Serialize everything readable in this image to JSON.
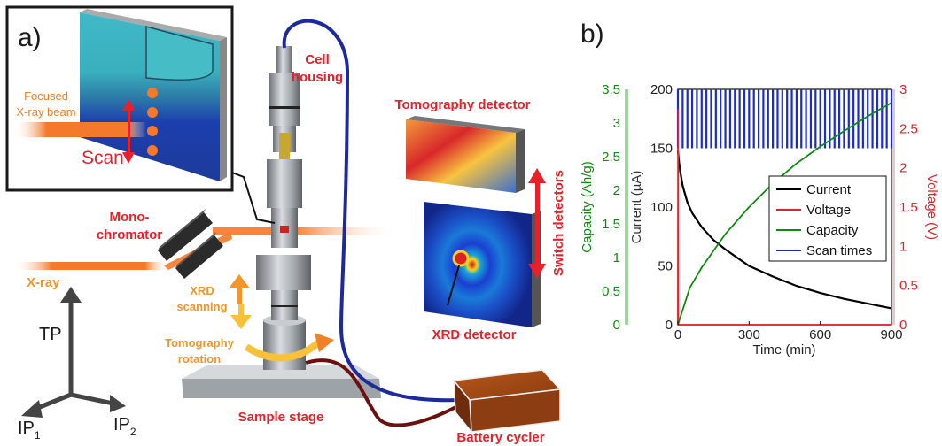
{
  "panel_a": {
    "panel_label": "a)",
    "inset": {
      "beam_label_line1": "Focused",
      "beam_label_line2": "X-ray beam",
      "scan_label": "Scan"
    },
    "labels": {
      "cell_housing_line1": "Cell",
      "cell_housing_line2": "housing",
      "tomography_detector": "Tomography detector",
      "switch_detectors": "Switch detectors",
      "monochromator_line1": "Mono-",
      "monochromator_line2": "chromator",
      "xray": "X-ray",
      "xrd_scanning_line1": "XRD",
      "xrd_scanning_line2": "scanning",
      "tomography_rotation_line1": "Tomography",
      "tomography_rotation_line2": "rotation",
      "xrd_detector": "XRD detector",
      "sample_stage": "Sample stage",
      "battery_cycler": "Battery cycler"
    },
    "axes_glyph": {
      "tp": "TP",
      "ip": "IP",
      "sub1": "1",
      "sub2": "2"
    },
    "colors": {
      "red_label": "#e8202a",
      "orange_label": "#f0962a",
      "beam": "#f5792a",
      "cable_blue": "#1c2a9c",
      "cable_red": "#6b0f0f"
    }
  },
  "panel_b": {
    "panel_label": "b)",
    "chart_data": {
      "type": "line",
      "xlabel": "Time (min)",
      "ylabel_left": "Current  (µA)",
      "ylabel_capacity": "Capacity (Ah/g)",
      "ylabel_right": "Voltage (V)",
      "xlim": [
        0,
        900
      ],
      "xticks": [
        0,
        300,
        600,
        900
      ],
      "ylim_current": [
        0,
        200
      ],
      "yticks_current": [
        0,
        50,
        100,
        150,
        200
      ],
      "ylim_capacity": [
        0,
        3.5
      ],
      "yticks_capacity": [
        "0",
        "0.5",
        "1",
        "1.5",
        "2",
        "2.5",
        "3",
        "3.5"
      ],
      "ylim_voltage": [
        0,
        3
      ],
      "yticks_voltage": [
        "0",
        "0.5",
        "1",
        "1.5",
        "2",
        "2.5",
        "3"
      ],
      "legend_position": "center-right",
      "series": [
        {
          "name": "Current",
          "color": "#000000",
          "axis": "current",
          "x": [
            0,
            5,
            10,
            20,
            40,
            60,
            100,
            150,
            200,
            250,
            300,
            400,
            500,
            600,
            700,
            800,
            900
          ],
          "y": [
            148,
            138,
            130,
            118,
            104,
            95,
            83,
            72,
            64,
            57,
            50,
            41,
            33,
            27,
            22,
            18,
            14
          ]
        },
        {
          "name": "Voltage",
          "color": "#e8202a",
          "axis": "voltage",
          "x": [
            0,
            1,
            2,
            5,
            900
          ],
          "y": [
            0,
            2.75,
            0,
            0,
            0
          ]
        },
        {
          "name": "Capacity",
          "color": "#118a11",
          "axis": "capacity",
          "x": [
            0,
            50,
            100,
            150,
            200,
            300,
            400,
            500,
            600,
            700,
            800,
            900
          ],
          "y": [
            0,
            0.55,
            0.85,
            1.1,
            1.35,
            1.75,
            2.1,
            2.4,
            2.65,
            2.88,
            3.1,
            3.3
          ]
        },
        {
          "name": "Scan times",
          "color": "#1a2bd0",
          "axis": "current",
          "interval_min": 20,
          "ymin": 150,
          "ymax": 200
        }
      ]
    }
  }
}
